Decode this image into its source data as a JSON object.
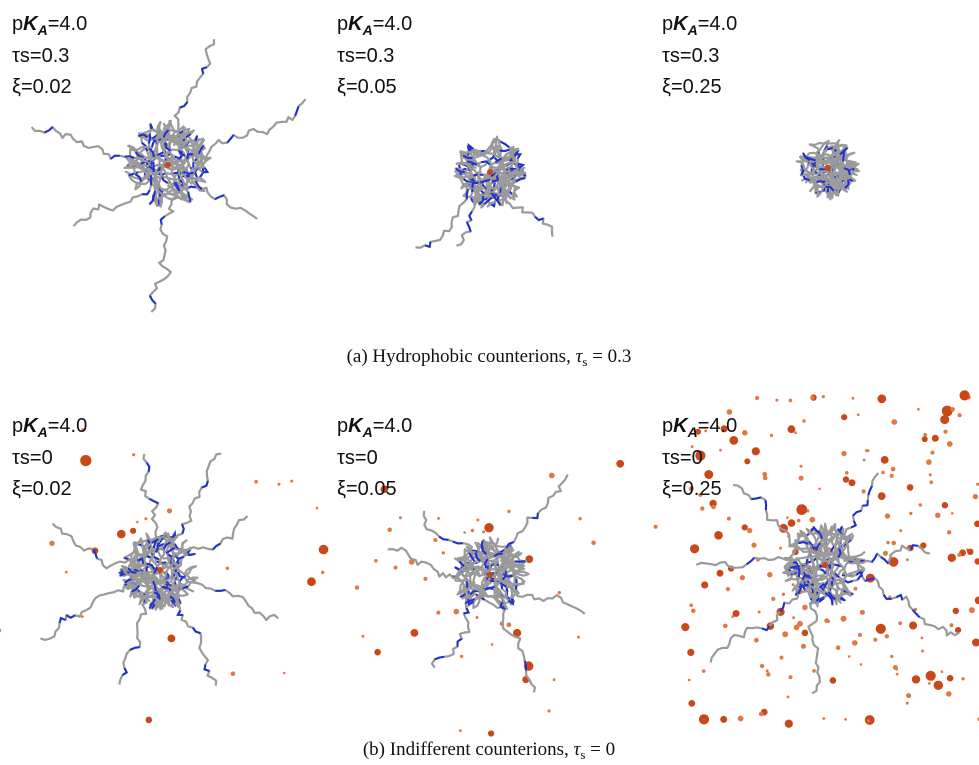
{
  "rows": [
    {
      "panels": [
        {
          "pka": [
            "p",
            "K",
            "A",
            "=4.0"
          ],
          "tau": "τs=0.3",
          "xi": "ξ=0.02"
        },
        {
          "pka": [
            "p",
            "K",
            "A",
            "=4.0"
          ],
          "tau": "τs=0.3",
          "xi": "ξ=0.05"
        },
        {
          "pka": [
            "p",
            "K",
            "A",
            "=4.0"
          ],
          "tau": "τs=0.3",
          "xi": "ξ=0.25"
        }
      ],
      "caption": [
        "(a) Hydrophobic counterions, ",
        "τ",
        "s",
        " = 0.3"
      ]
    },
    {
      "panels": [
        {
          "pka": [
            "p",
            "K",
            "A",
            "=4.0"
          ],
          "tau": "τs=0",
          "xi": "ξ=0.02"
        },
        {
          "pka": [
            "p",
            "K",
            "A",
            "=4.0"
          ],
          "tau": "τs=0",
          "xi": "ξ=0.05"
        },
        {
          "pka": [
            "p",
            "K",
            "A",
            "=4.0"
          ],
          "tau": "τs=0",
          "xi": "ξ=0.25"
        }
      ],
      "caption": [
        "(b) Indifferent counterions, ",
        "τ",
        "s",
        " = 0"
      ]
    }
  ]
}
